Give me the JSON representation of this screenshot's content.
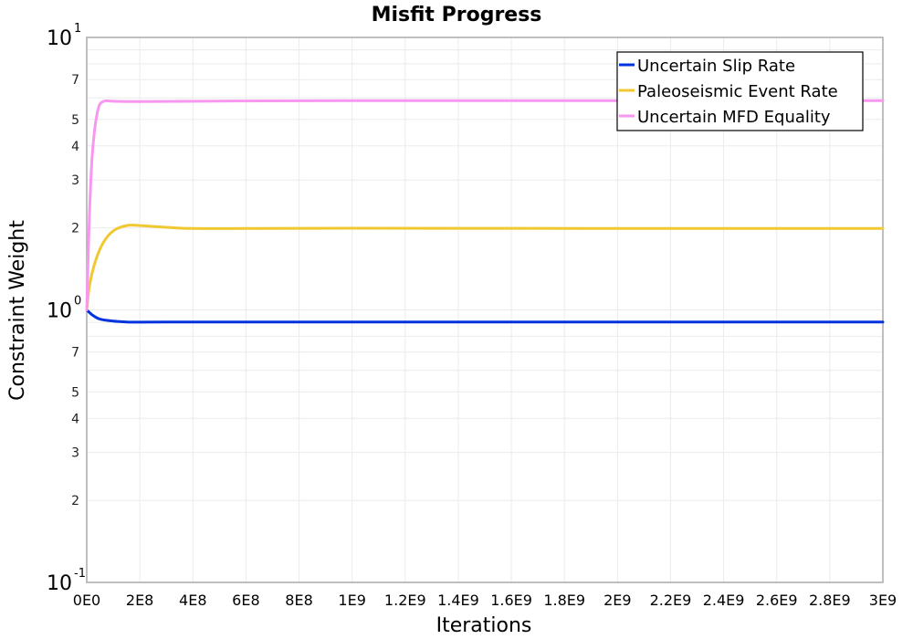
{
  "chart_data": {
    "type": "line",
    "title": "Misfit Progress",
    "xlabel": "Iterations",
    "ylabel": "Constraint Weight",
    "xscale": "linear",
    "yscale": "log",
    "xlim": [
      0,
      3000000000
    ],
    "ylim": [
      0.1,
      10
    ],
    "grid": true,
    "legend_position": "upper right",
    "x_ticks": [
      "0E0",
      "2E8",
      "4E8",
      "6E8",
      "8E8",
      "1E9",
      "1.2E9",
      "1.4E9",
      "1.6E9",
      "1.8E9",
      "2E9",
      "2.2E9",
      "2.4E9",
      "2.6E9",
      "2.8E9",
      "3E9"
    ],
    "y_major_ticks": [
      {
        "value": 0.1,
        "base": "10",
        "exp": "-1"
      },
      {
        "value": 1,
        "base": "10",
        "exp": "0"
      },
      {
        "value": 10,
        "base": "10",
        "exp": "1"
      }
    ],
    "y_minor_labels": [
      {
        "value": 0.2,
        "label": "2"
      },
      {
        "value": 0.3,
        "label": "3"
      },
      {
        "value": 0.4,
        "label": "4"
      },
      {
        "value": 0.5,
        "label": "5"
      },
      {
        "value": 0.7,
        "label": "7"
      },
      {
        "value": 2,
        "label": "2"
      },
      {
        "value": 3,
        "label": "3"
      },
      {
        "value": 4,
        "label": "4"
      },
      {
        "value": 5,
        "label": "5"
      },
      {
        "value": 7,
        "label": "7"
      }
    ],
    "series": [
      {
        "name": "Uncertain Slip Rate",
        "color": "#0033dd",
        "x": [
          0,
          20000000,
          50000000,
          100000000,
          150000000,
          200000000,
          300000000,
          500000000,
          1000000000,
          2000000000,
          3000000000
        ],
        "values": [
          1.0,
          0.96,
          0.925,
          0.91,
          0.903,
          0.902,
          0.903,
          0.903,
          0.903,
          0.903,
          0.903
        ]
      },
      {
        "name": "Paleoseismic Event Rate",
        "color": "#f0c832",
        "x": [
          0,
          10000000,
          30000000,
          60000000,
          100000000,
          150000000,
          200000000,
          300000000,
          400000000,
          600000000,
          1000000000,
          2000000000,
          3000000000
        ],
        "values": [
          1.0,
          1.22,
          1.48,
          1.75,
          1.95,
          2.04,
          2.04,
          2.01,
          1.99,
          1.99,
          1.995,
          1.99,
          1.99
        ]
      },
      {
        "name": "Uncertain MFD Equality",
        "color": "#f797f0",
        "x": [
          0,
          10000000,
          20000000,
          30000000,
          40000000,
          50000000,
          70000000,
          100000000,
          200000000,
          500000000,
          1000000000,
          2000000000,
          3000000000
        ],
        "values": [
          1.0,
          2.2,
          3.6,
          4.6,
          5.3,
          5.7,
          5.85,
          5.83,
          5.82,
          5.84,
          5.86,
          5.86,
          5.86
        ]
      }
    ]
  },
  "colors": {
    "background": "#ffffff",
    "plot_border": "#aaaaaa",
    "grid": "#ebebeb",
    "legend_border": "#000000"
  }
}
